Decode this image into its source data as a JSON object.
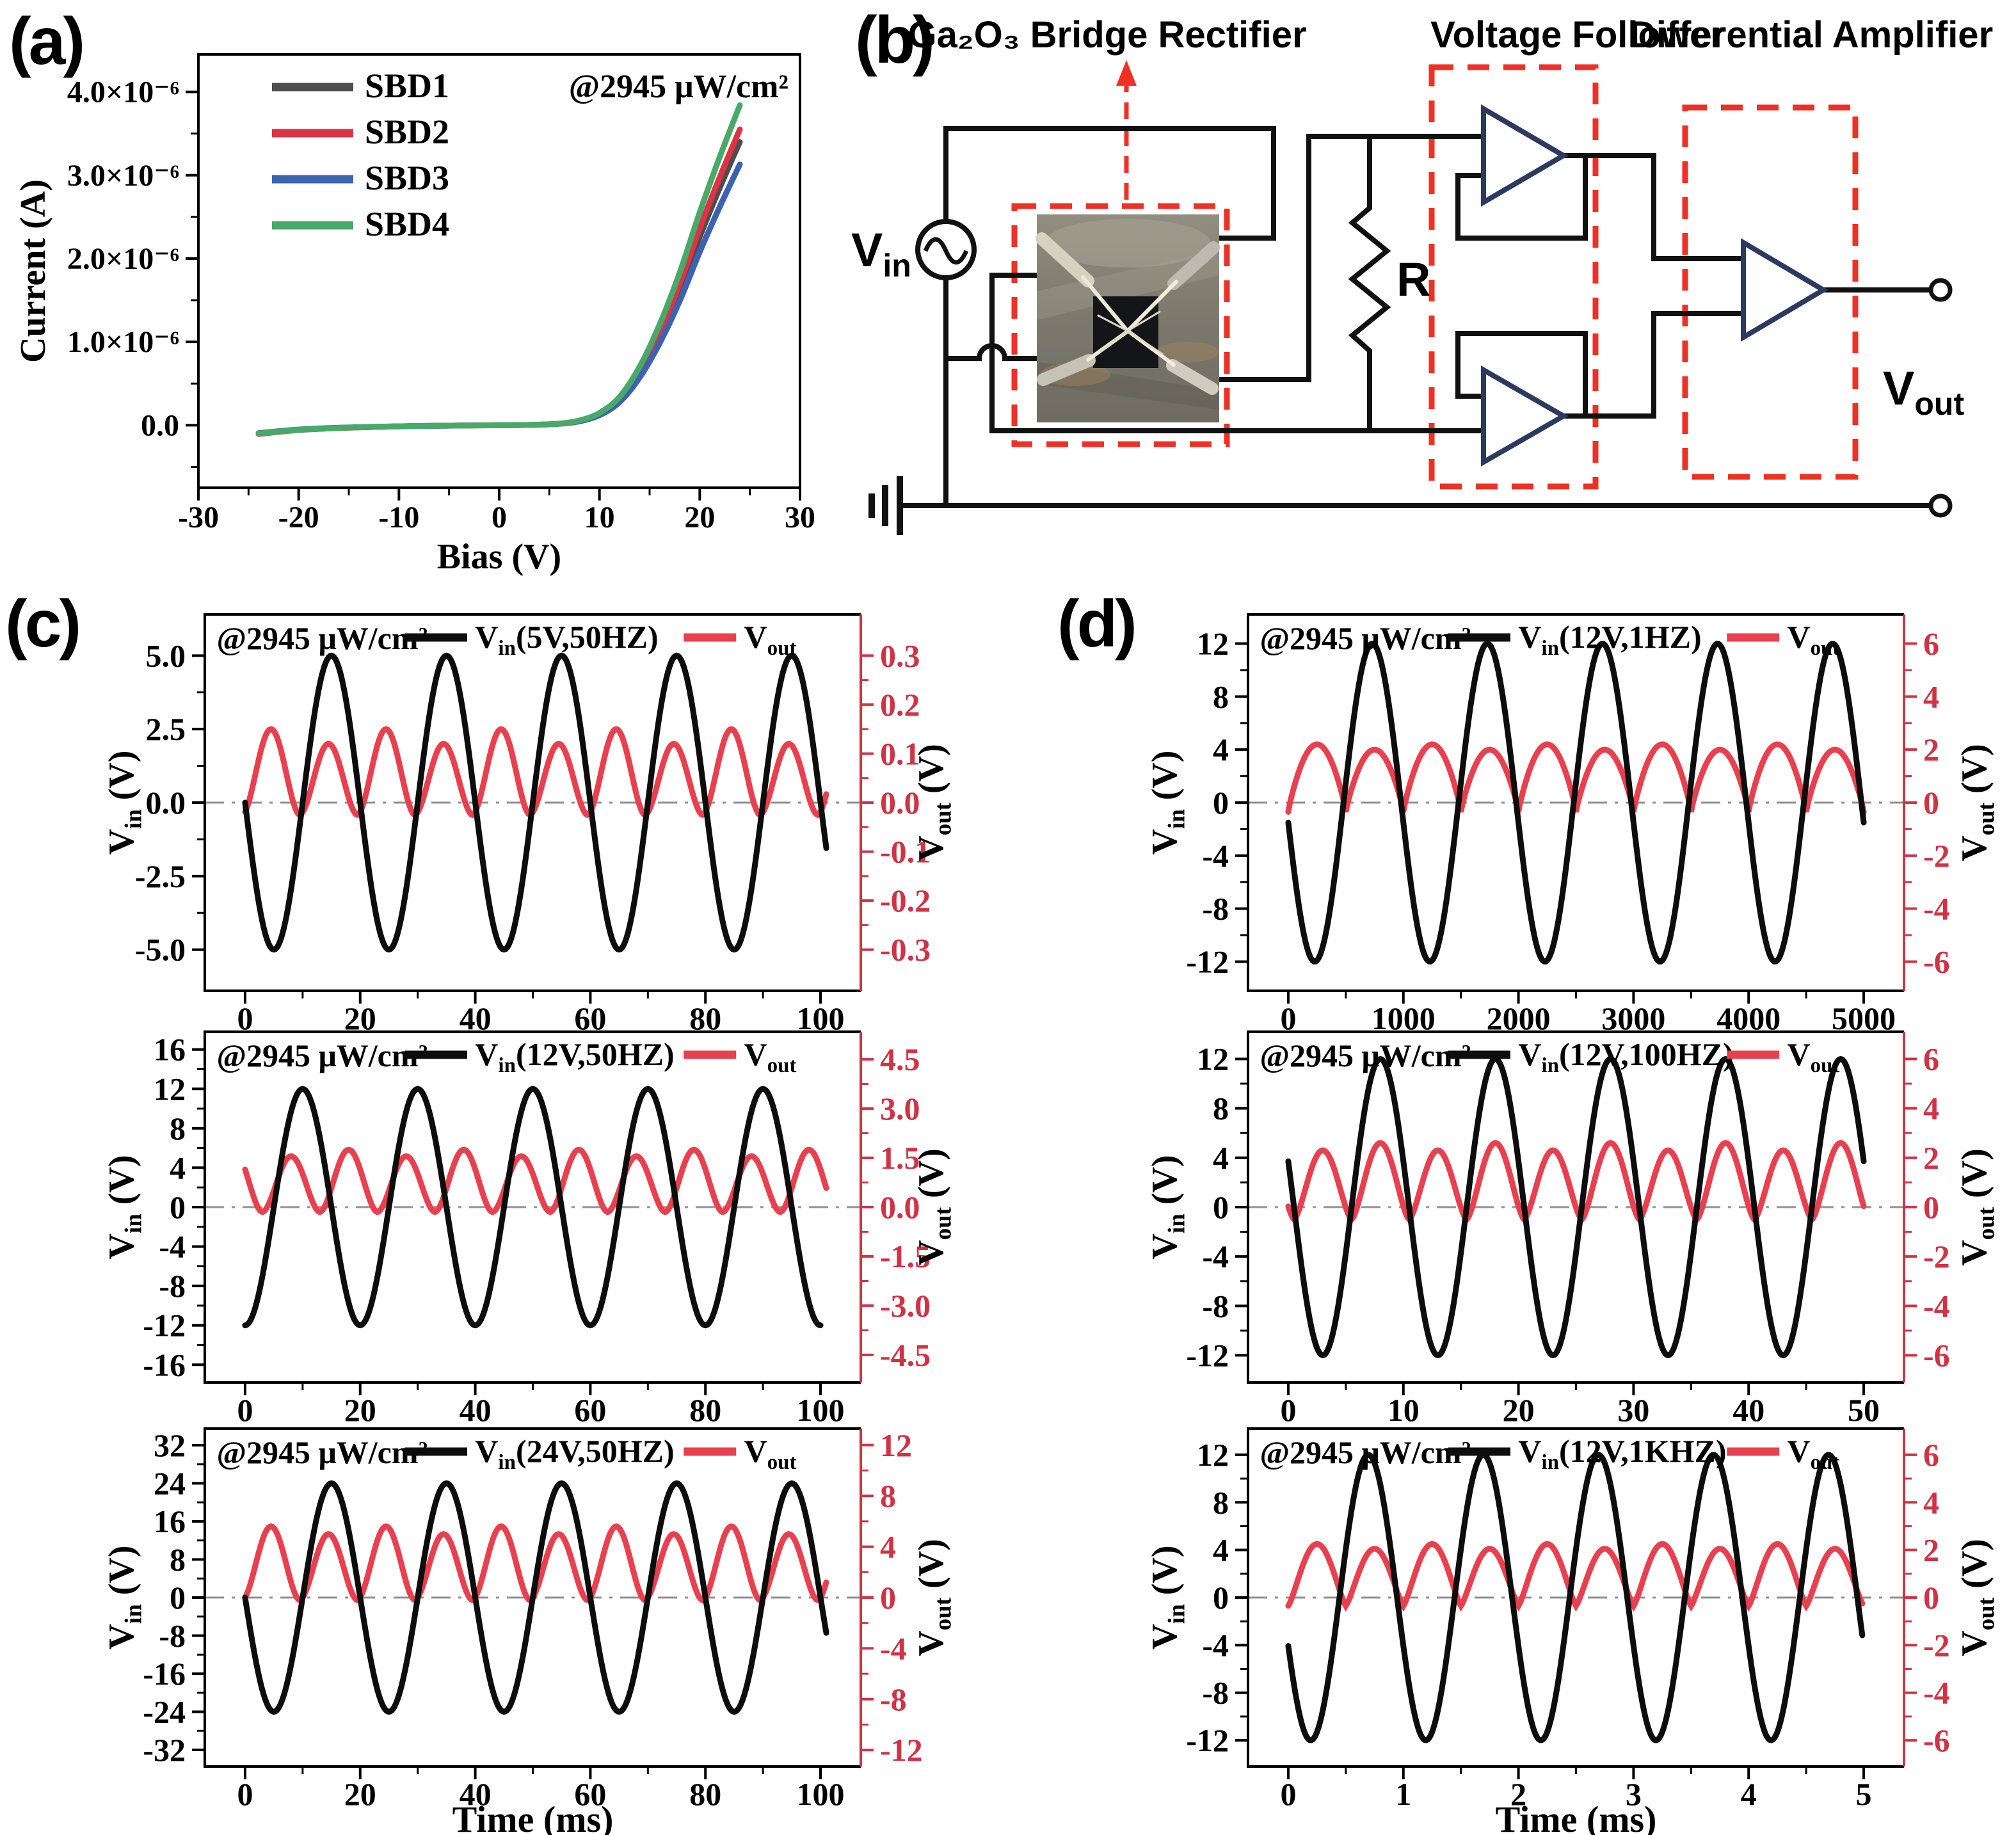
{
  "figure": {
    "panel_labels": {
      "a": "(a)",
      "b": "(b)",
      "c": "(c)",
      "d": "(d)"
    }
  },
  "colors": {
    "black_curve": "#0d0d0d",
    "vout_red": "#e8404e",
    "right_axis_red": "#cf3344",
    "dashed_red": "#ee3124",
    "opamp_navy": "#2b3a5e",
    "sbd1": "#4d4d4d",
    "sbd2": "#dd3344",
    "sbd3": "#3b63b0",
    "sbd4": "#49a969",
    "zero_line_gray": "#909090"
  },
  "circuit": {
    "bridge_label": "Ga₂O₃ Bridge Rectifier",
    "vf_label": "Voltage Follower",
    "da_label": "Differential Amplifier",
    "vin": {
      "pre": "V",
      "sub": "in"
    },
    "vout": {
      "pre": "V",
      "sub": "out"
    },
    "resistor_label": "R"
  },
  "chart_data": [
    {
      "id": "a",
      "type": "line",
      "xlabel": "Bias (V)",
      "ylabel": "Current (A)",
      "annotation": "@2945 μW/cm²",
      "xlim": [
        -30,
        30
      ],
      "xticks": [
        -30,
        -20,
        -10,
        0,
        10,
        20,
        30
      ],
      "x_minor_step": 5,
      "ylim_uA": [
        -0.75,
        4.45
      ],
      "y_minor_step": 0.5,
      "yticks": [
        {
          "v": 0,
          "label": "0.0"
        },
        {
          "v": 1,
          "label": "1.0×10⁻⁶"
        },
        {
          "v": 2,
          "label": "2.0×10⁻⁶"
        },
        {
          "v": 3,
          "label": "3.0×10⁻⁶"
        },
        {
          "v": 4,
          "label": "4.0×10⁻⁶"
        }
      ],
      "current_unit": "10⁻⁶ A",
      "series": [
        {
          "name": "SBD1",
          "color_key": "sbd1",
          "points": [
            [
              -24,
              -0.1
            ],
            [
              -20,
              -0.055
            ],
            [
              -16,
              -0.032
            ],
            [
              -12,
              -0.018
            ],
            [
              -8,
              -0.009
            ],
            [
              -4,
              -0.004
            ],
            [
              0,
              0
            ],
            [
              2,
              0.002
            ],
            [
              4,
              0.007
            ],
            [
              6,
              0.018
            ],
            [
              8,
              0.05
            ],
            [
              10,
              0.13
            ],
            [
              12,
              0.3
            ],
            [
              14,
              0.62
            ],
            [
              16,
              1.07
            ],
            [
              18,
              1.62
            ],
            [
              20,
              2.26
            ],
            [
              22,
              2.85
            ],
            [
              24,
              3.4
            ]
          ]
        },
        {
          "name": "SBD2",
          "color_key": "sbd2",
          "points": [
            [
              -24,
              -0.105
            ],
            [
              -20,
              -0.058
            ],
            [
              -16,
              -0.034
            ],
            [
              -12,
              -0.019
            ],
            [
              -8,
              -0.01
            ],
            [
              -4,
              -0.004
            ],
            [
              0,
              0
            ],
            [
              2,
              0.002
            ],
            [
              4,
              0.007
            ],
            [
              6,
              0.019
            ],
            [
              8,
              0.052
            ],
            [
              10,
              0.136
            ],
            [
              12,
              0.314
            ],
            [
              14,
              0.648
            ],
            [
              16,
              1.118
            ],
            [
              18,
              1.693
            ],
            [
              20,
              2.362
            ],
            [
              22,
              2.978
            ],
            [
              24,
              3.55
            ]
          ]
        },
        {
          "name": "SBD3",
          "color_key": "sbd3",
          "points": [
            [
              -24,
              -0.095
            ],
            [
              -20,
              -0.052
            ],
            [
              -16,
              -0.03
            ],
            [
              -12,
              -0.017
            ],
            [
              -8,
              -0.009
            ],
            [
              -4,
              -0.004
            ],
            [
              0,
              0
            ],
            [
              2,
              0.002
            ],
            [
              4,
              0.006
            ],
            [
              6,
              0.017
            ],
            [
              8,
              0.046
            ],
            [
              10,
              0.12
            ],
            [
              12,
              0.276
            ],
            [
              14,
              0.57
            ],
            [
              16,
              0.984
            ],
            [
              18,
              1.49
            ],
            [
              20,
              2.079
            ],
            [
              22,
              2.622
            ],
            [
              24,
              3.13
            ]
          ]
        },
        {
          "name": "SBD4",
          "color_key": "sbd4",
          "points": [
            [
              -24,
              -0.1
            ],
            [
              -20,
              -0.056
            ],
            [
              -16,
              -0.033
            ],
            [
              -12,
              -0.018
            ],
            [
              -8,
              -0.009
            ],
            [
              -4,
              -0.004
            ],
            [
              0,
              0
            ],
            [
              2,
              0.002
            ],
            [
              4,
              0.007
            ],
            [
              6,
              0.019
            ],
            [
              8,
              0.057
            ],
            [
              10,
              0.147
            ],
            [
              12,
              0.339
            ],
            [
              14,
              0.701
            ],
            [
              16,
              1.209
            ],
            [
              18,
              1.831
            ],
            [
              20,
              2.554
            ],
            [
              22,
              3.221
            ],
            [
              24,
              3.84
            ]
          ]
        }
      ]
    },
    {
      "id": "c1",
      "type": "line",
      "xlabel": "",
      "annotation": "@2945 μW/cm²",
      "xlim": [
        -7,
        107
      ],
      "xticks": [
        0,
        20,
        40,
        60,
        80,
        100
      ],
      "x_minor_step": 10,
      "left": {
        "label": {
          "pre": "V",
          "sub": "in",
          "post": " (V)"
        },
        "tick_labels": [
          "5.0",
          "2.5",
          "0.0",
          "-2.5",
          "-5.0"
        ],
        "tick_vals": [
          5,
          2.5,
          0,
          -2.5,
          -5
        ],
        "lim": [
          -6.4,
          6.4
        ]
      },
      "right": {
        "label": {
          "pre": "V",
          "sub": "out",
          "post": " (V)"
        },
        "tick_labels": [
          "0.3",
          "0.2",
          "0.1",
          "0.0",
          "-0.1",
          "-0.2",
          "-0.3"
        ],
        "tick_vals": [
          0.3,
          0.2,
          0.1,
          0,
          -0.1,
          -0.2,
          -0.3
        ],
        "lim": [
          -0.384,
          0.384
        ]
      },
      "vin": {
        "legend": {
          "pre": "V",
          "sub": "in",
          "post": "(5V,50HZ)"
        },
        "amplitude_V": 5,
        "period_ms": 20,
        "form": "sin",
        "sign": -1,
        "shift_ms": 0,
        "t_start_ms": 0,
        "t_end_ms": 101
      },
      "vout": {
        "legend": {
          "pre": "V",
          "sub": "out",
          "post": ""
        },
        "t0_ms": -0.5,
        "half_period_ms": 10,
        "peaks_V": [
          0.15,
          0.12
        ],
        "min_V": -0.025,
        "sharpness": 1.8,
        "t_start_ms": 0,
        "t_end_ms": 101
      }
    },
    {
      "id": "c2",
      "type": "line",
      "xlabel": "",
      "annotation": "@2945 μW/cm²",
      "xlim": [
        -7,
        107
      ],
      "xticks": [
        0,
        20,
        40,
        60,
        80,
        100
      ],
      "x_minor_step": 10,
      "left": {
        "label": {
          "pre": "V",
          "sub": "in",
          "post": " (V)"
        },
        "tick_labels": [
          "16",
          "12",
          "8",
          "4",
          "0",
          "-4",
          "-8",
          "-12",
          "-16"
        ],
        "tick_vals": [
          16,
          12,
          8,
          4,
          0,
          -4,
          -8,
          -12,
          -16
        ],
        "lim": [
          -17.8,
          17.8
        ]
      },
      "right": {
        "label": {
          "pre": "V",
          "sub": "out",
          "post": " (V)"
        },
        "tick_labels": [
          "4.5",
          "3.0",
          "1.5",
          "0.0",
          "-1.5",
          "-3.0",
          "-4.5"
        ],
        "tick_vals": [
          4.5,
          3,
          1.5,
          0,
          -1.5,
          -3,
          -4.5
        ],
        "lim": [
          -5.34,
          5.34
        ]
      },
      "vin": {
        "legend": {
          "pre": "V",
          "sub": "in",
          "post": "(12V,50HZ)"
        },
        "amplitude_V": 12,
        "period_ms": 20,
        "form": "cos",
        "sign": -1,
        "shift_ms": 0,
        "t_start_ms": 0,
        "t_end_ms": 100
      },
      "vout": {
        "legend": {
          "pre": "V",
          "sub": "out",
          "post": ""
        },
        "t0_ms": 3,
        "half_period_ms": 10,
        "peaks_V": [
          1.55,
          1.75
        ],
        "min_V": -0.15,
        "sharpness": 1.8,
        "t_start_ms": 0,
        "t_end_ms": 101
      }
    },
    {
      "id": "c3",
      "type": "line",
      "xlabel": "Time (ms)",
      "annotation": "@2945 μW/cm²",
      "xlim": [
        -7,
        107
      ],
      "xticks": [
        0,
        20,
        40,
        60,
        80,
        100
      ],
      "x_minor_step": 10,
      "left": {
        "label": {
          "pre": "V",
          "sub": "in",
          "post": " (V)"
        },
        "tick_labels": [
          "32",
          "24",
          "16",
          "8",
          "0",
          "-8",
          "-16",
          "-24",
          "-32"
        ],
        "tick_vals": [
          32,
          24,
          16,
          8,
          0,
          -8,
          -16,
          -24,
          -32
        ],
        "lim": [
          -35.5,
          35.5
        ]
      },
      "right": {
        "label": {
          "pre": "V",
          "sub": "out",
          "post": " (V)"
        },
        "tick_labels": [
          "12",
          "8",
          "4",
          "0",
          "-4",
          "-8",
          "-12"
        ],
        "tick_vals": [
          12,
          8,
          4,
          0,
          -4,
          -8,
          -12
        ],
        "lim": [
          -13.3,
          13.3
        ]
      },
      "vin": {
        "legend": {
          "pre": "V",
          "sub": "in",
          "post": "(24V,50HZ)"
        },
        "amplitude_V": 24,
        "period_ms": 20,
        "form": "sin",
        "sign": -1,
        "shift_ms": 0,
        "t_start_ms": 0,
        "t_end_ms": 101
      },
      "vout": {
        "legend": {
          "pre": "V",
          "sub": "out",
          "post": ""
        },
        "t0_ms": -0.5,
        "half_period_ms": 10,
        "peaks_V": [
          5.6,
          5.0
        ],
        "min_V": -0.2,
        "sharpness": 1.8,
        "t_start_ms": 0,
        "t_end_ms": 101
      }
    },
    {
      "id": "d1",
      "type": "line",
      "xlabel": "",
      "annotation": "@2945 μW/cm²",
      "xlim": [
        -350,
        5350
      ],
      "xticks": [
        0,
        1000,
        2000,
        3000,
        4000,
        5000
      ],
      "x_minor_step": 500,
      "left": {
        "label": {
          "pre": "V",
          "sub": "in",
          "post": " (V)"
        },
        "tick_labels": [
          "12",
          "8",
          "4",
          "0",
          "-4",
          "-8",
          "-12"
        ],
        "tick_vals": [
          12,
          8,
          4,
          0,
          -4,
          -8,
          -12
        ],
        "lim": [
          -14.2,
          14.2
        ]
      },
      "right": {
        "label": {
          "pre": "V",
          "sub": "out",
          "post": " (V)"
        },
        "tick_labels": [
          "6",
          "4",
          "2",
          "0",
          "-2",
          "-4",
          "-6"
        ],
        "tick_vals": [
          6,
          4,
          2,
          0,
          -2,
          -4,
          -6
        ],
        "lim": [
          -7.1,
          7.1
        ]
      },
      "vin": {
        "legend": {
          "pre": "V",
          "sub": "in",
          "post": "(12V,1HZ)"
        },
        "amplitude_V": 12,
        "period_ms": 1000,
        "form": "sin",
        "sign": -1,
        "shift_ms": 20,
        "t_start_ms": 0,
        "t_end_ms": 5000
      },
      "vout": {
        "legend": {
          "pre": "V",
          "sub": "out",
          "post": ""
        },
        "t0_ms": 0,
        "half_period_ms": 500,
        "peaks_V": [
          2.2,
          2.0
        ],
        "min_V": -0.35,
        "sharpness": 0.85,
        "t_start_ms": 0,
        "t_end_ms": 5000
      }
    },
    {
      "id": "d2",
      "type": "line",
      "xlabel": "",
      "annotation": "@2945 μW/cm²",
      "xlim": [
        -3.5,
        53.5
      ],
      "xticks": [
        0,
        10,
        20,
        30,
        40,
        50
      ],
      "x_minor_step": 5,
      "left": {
        "label": {
          "pre": "V",
          "sub": "in",
          "post": " (V)"
        },
        "tick_labels": [
          "12",
          "8",
          "4",
          "0",
          "-4",
          "-8",
          "-12"
        ],
        "tick_vals": [
          12,
          8,
          4,
          0,
          -4,
          -8,
          -12
        ],
        "lim": [
          -14.2,
          14.2
        ]
      },
      "right": {
        "label": {
          "pre": "V",
          "sub": "out",
          "post": " (V)"
        },
        "tick_labels": [
          "6",
          "4",
          "2",
          "0",
          "-2",
          "-4",
          "-6"
        ],
        "tick_vals": [
          6,
          4,
          2,
          0,
          -2,
          -4,
          -6
        ],
        "lim": [
          -7.1,
          7.1
        ]
      },
      "vin": {
        "legend": {
          "pre": "V",
          "sub": "in",
          "post": "(12V,100HZ)"
        },
        "amplitude_V": 12,
        "period_ms": 10,
        "form": "cos",
        "sign": 1,
        "shift_ms": -8,
        "t_start_ms": 0,
        "t_end_ms": 50
      },
      "vout": {
        "legend": {
          "pre": "V",
          "sub": "out",
          "post": ""
        },
        "t0_ms": 0.5,
        "half_period_ms": 5,
        "peaks_V": [
          2.3,
          2.6
        ],
        "min_V": -0.5,
        "sharpness": 1.5,
        "t_start_ms": 0,
        "t_end_ms": 50
      }
    },
    {
      "id": "d3",
      "type": "line",
      "xlabel": "Time (ms)",
      "annotation": "@2945 μW/cm²",
      "xlim": [
        -0.35,
        5.35
      ],
      "xticks": [
        0,
        1,
        2,
        3,
        4,
        5
      ],
      "x_minor_step": 0.5,
      "left": {
        "label": {
          "pre": "V",
          "sub": "in",
          "post": " (V)"
        },
        "tick_labels": [
          "12",
          "8",
          "4",
          "0",
          "-4",
          "-8",
          "-12"
        ],
        "tick_vals": [
          12,
          8,
          4,
          0,
          -4,
          -8,
          -12
        ],
        "lim": [
          -14.2,
          14.2
        ]
      },
      "right": {
        "label": {
          "pre": "V",
          "sub": "out",
          "post": " (V)"
        },
        "tick_labels": [
          "6",
          "4",
          "2",
          "0",
          "-2",
          "-4",
          "-6"
        ],
        "tick_vals": [
          6,
          4,
          2,
          0,
          -2,
          -4,
          -6
        ],
        "lim": [
          -7.1,
          7.1
        ]
      },
      "vin": {
        "legend": {
          "pre": "V",
          "sub": "in",
          "post": "(12V,1KHZ)"
        },
        "amplitude_V": 12,
        "period_ms": 1,
        "form": "sin",
        "sign": -1,
        "shift_ms": 0.055,
        "t_start_ms": 0,
        "t_end_ms": 5
      },
      "vout": {
        "legend": {
          "pre": "V",
          "sub": "out",
          "post": ""
        },
        "t0_ms": 0,
        "half_period_ms": 0.5,
        "peaks_V": [
          2.25,
          2.05
        ],
        "min_V": -0.35,
        "sharpness": 1.25,
        "t_start_ms": 0,
        "t_end_ms": 5
      }
    }
  ]
}
